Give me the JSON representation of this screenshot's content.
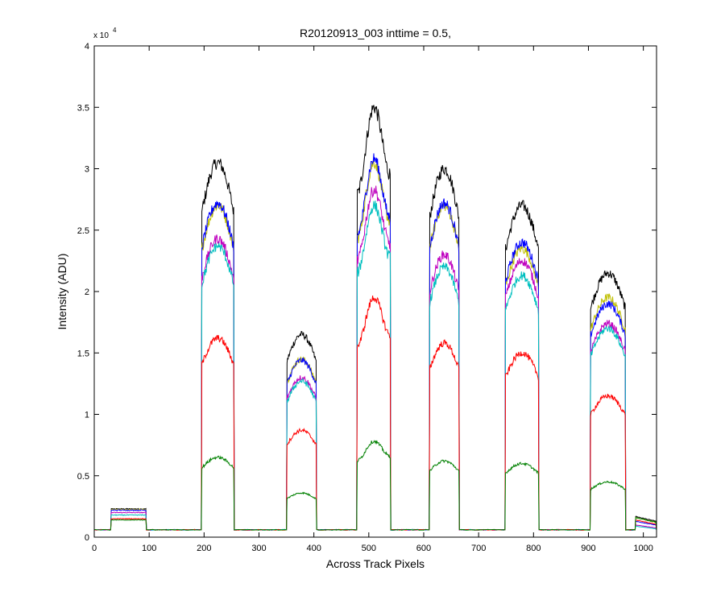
{
  "chart_data": {
    "type": "line",
    "title": "R20120913_003 inttime = 0.5,",
    "xlabel": "Across Track Pixels",
    "ylabel": "Intensity (ADU)",
    "xlim": [
      0,
      1024
    ],
    "ylim": [
      0,
      40000
    ],
    "y_exponent_label": "x 10",
    "y_exponent_power": "4",
    "xticks": [
      0,
      100,
      200,
      300,
      400,
      500,
      600,
      700,
      800,
      900,
      1000
    ],
    "xtick_labels": [
      "0",
      "100",
      "200",
      "300",
      "400",
      "500",
      "600",
      "700",
      "800",
      "900",
      "1000"
    ],
    "yticks": [
      0,
      5000,
      10000,
      15000,
      20000,
      25000,
      30000,
      35000,
      40000
    ],
    "ytick_labels": [
      "0",
      "0.5",
      "1",
      "1.5",
      "2",
      "2.5",
      "3",
      "3.5",
      "4"
    ],
    "grid": false,
    "baseline": 600,
    "segments": [
      {
        "x0": 30,
        "x1": 95
      },
      {
        "x0": 195,
        "x1": 255
      },
      {
        "x0": 350,
        "x1": 405
      },
      {
        "x0": 478,
        "x1": 540
      },
      {
        "x0": 610,
        "x1": 665
      },
      {
        "x0": 748,
        "x1": 810
      },
      {
        "x0": 903,
        "x1": 968
      },
      {
        "x0": 985,
        "x1": 1024
      }
    ],
    "series": [
      {
        "color": "#000000",
        "peaks": [
          2300,
          30500,
          16500,
          35000,
          30000,
          27000,
          21500,
          1700
        ],
        "shapes": [
          "flat",
          "dome",
          "dome",
          "rise",
          "dome",
          "dome",
          "dome",
          "fall"
        ]
      },
      {
        "color": "#bfbf00",
        "peaks": [
          2250,
          27000,
          14500,
          30500,
          27000,
          23500,
          19500,
          1600
        ],
        "shapes": [
          "flat",
          "dome",
          "dome",
          "rise",
          "dome",
          "dome",
          "dome",
          "fall"
        ]
      },
      {
        "color": "#0000ff",
        "peaks": [
          2200,
          27200,
          14400,
          30800,
          27200,
          24000,
          19000,
          1300
        ],
        "shapes": [
          "flat",
          "dome",
          "dome",
          "rise",
          "dome",
          "dome",
          "dome",
          "fall"
        ]
      },
      {
        "color": "#bf00bf",
        "peaks": [
          2000,
          24300,
          13000,
          28300,
          23000,
          22500,
          17400,
          1000
        ],
        "shapes": [
          "flat",
          "dome",
          "dome",
          "rise",
          "dome",
          "dome",
          "dome",
          "fall"
        ]
      },
      {
        "color": "#00bfbf",
        "peaks": [
          1800,
          23700,
          12700,
          27000,
          22000,
          21300,
          17000,
          900
        ],
        "shapes": [
          "flat",
          "dome",
          "dome",
          "rise",
          "dome",
          "dome",
          "dome",
          "fall"
        ]
      },
      {
        "color": "#ff0000",
        "peaks": [
          1500,
          16200,
          8700,
          19500,
          15800,
          15000,
          11500,
          1400
        ],
        "shapes": [
          "flat",
          "dome",
          "dome",
          "rise",
          "dome",
          "dome",
          "dome",
          "fall"
        ]
      },
      {
        "color": "#008000",
        "peaks": [
          1400,
          6500,
          3600,
          7800,
          6200,
          6000,
          4500,
          1600
        ],
        "shapes": [
          "flat",
          "dome",
          "dome",
          "rise",
          "dome",
          "dome",
          "dome",
          "fall"
        ]
      }
    ]
  }
}
